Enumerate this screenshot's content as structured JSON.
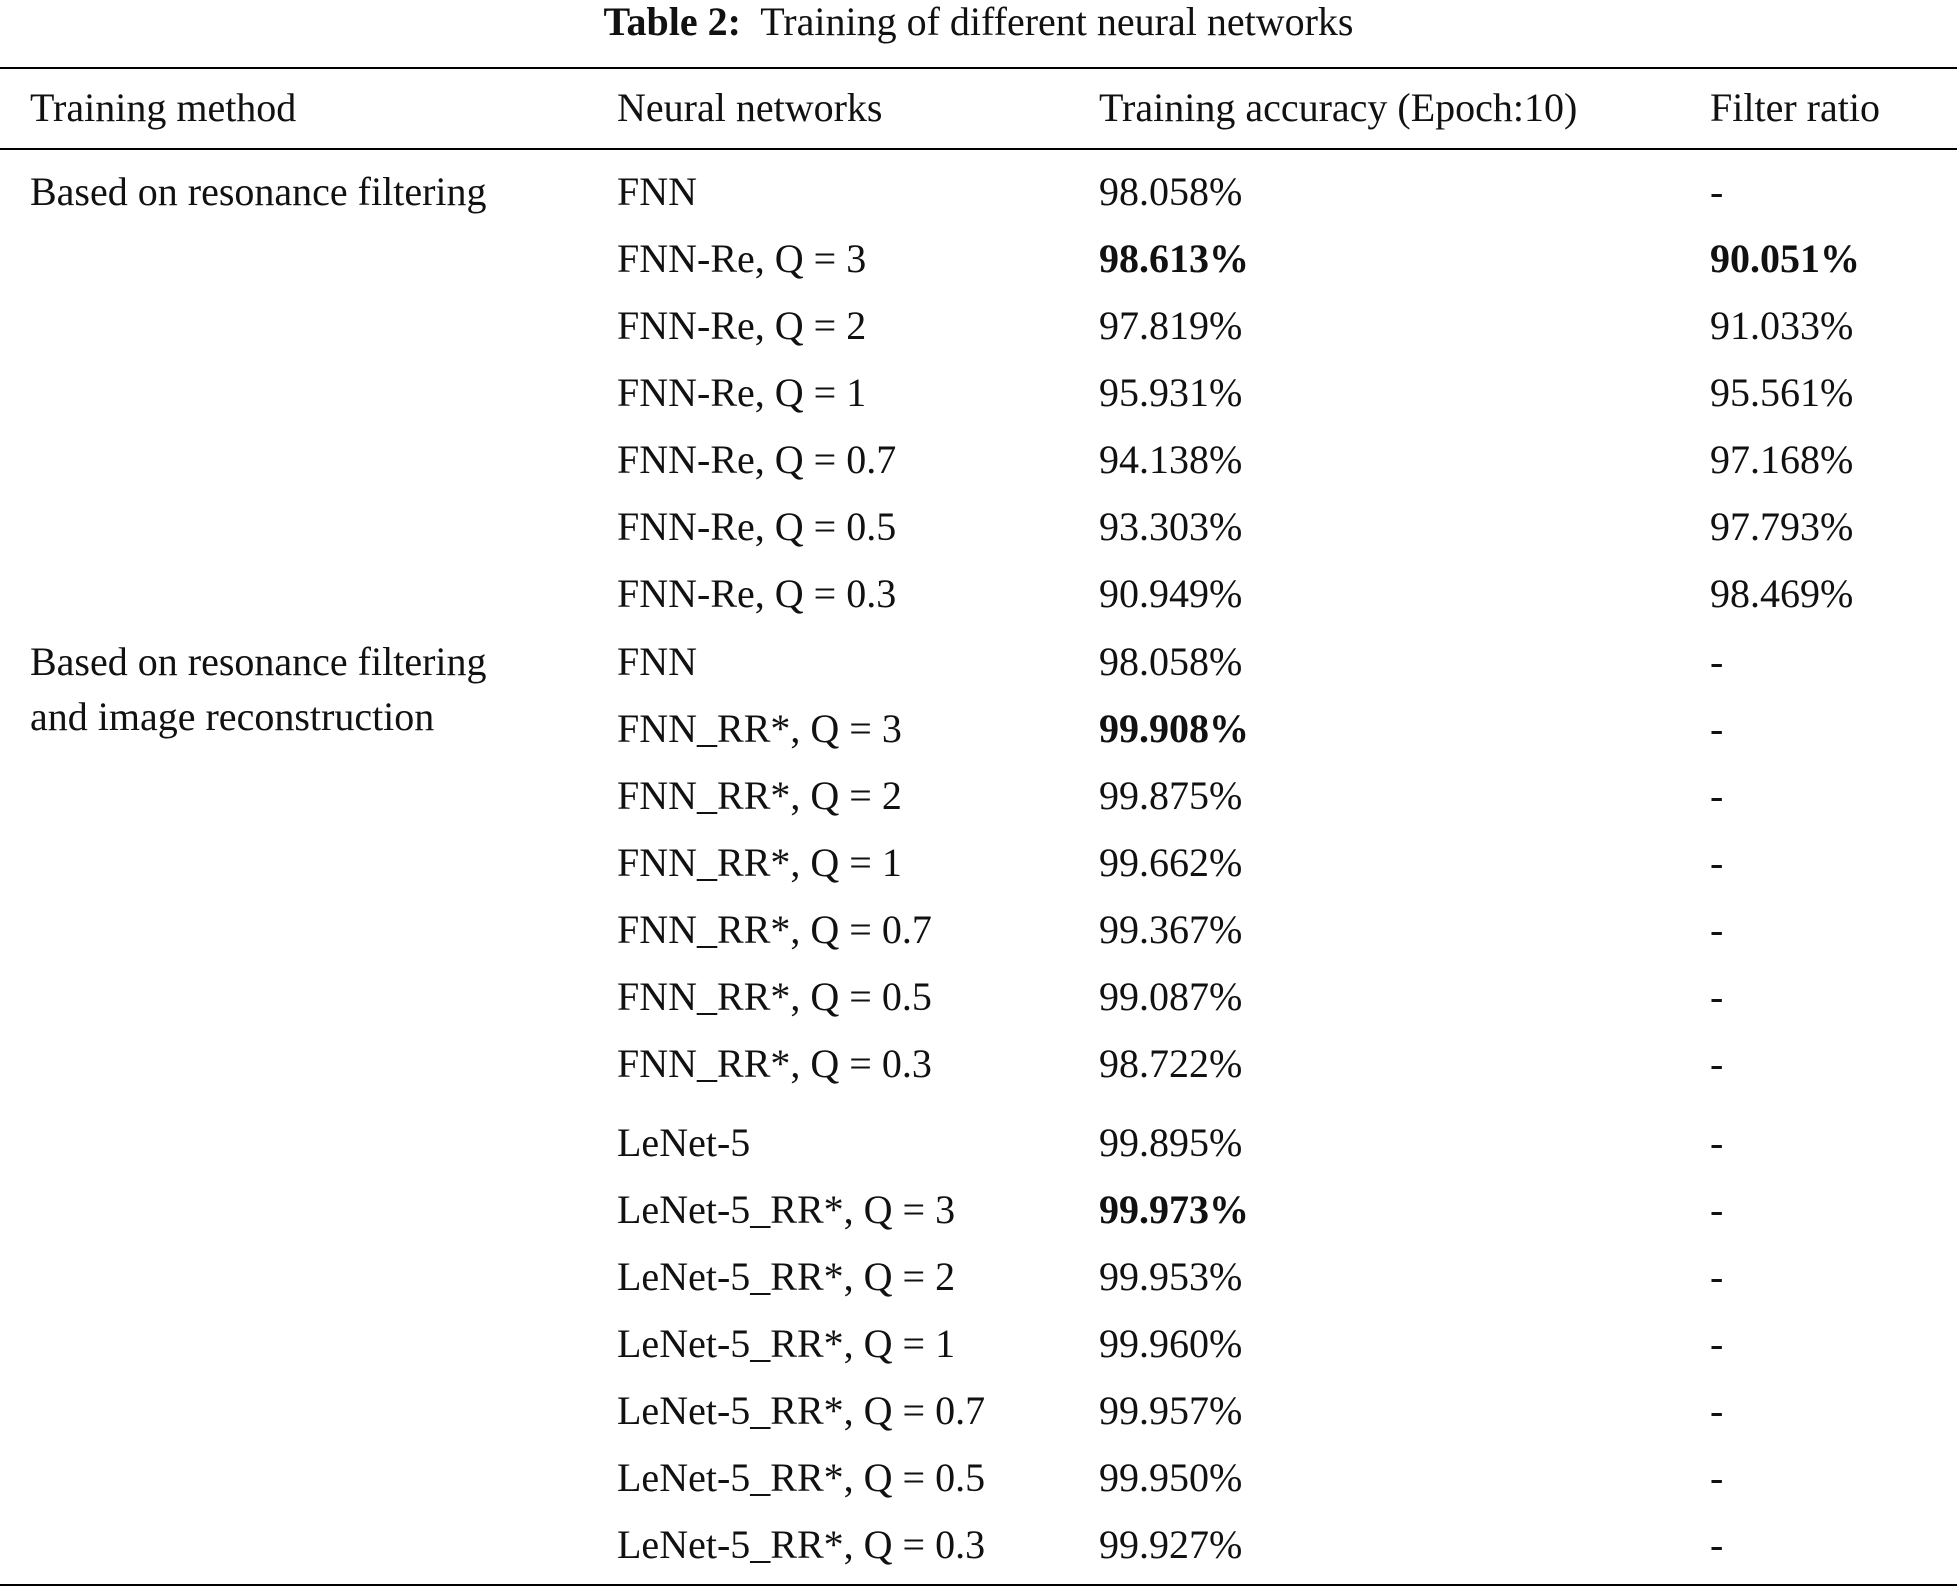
{
  "caption": {
    "label": "Table 2:",
    "text": "Training of different neural networks"
  },
  "table": {
    "headers": [
      "Training method",
      "Neural networks",
      "Training accuracy (Epoch:10)",
      "Filter ratio"
    ],
    "groups": [
      {
        "method_lines": [
          "Based on resonance filtering"
        ],
        "rows": [
          {
            "network": "FNN",
            "accuracy": "98.058%",
            "filter_ratio": "-",
            "acc_bold": false,
            "fr_bold": false
          },
          {
            "network": "FNN-Re, Q = 3",
            "accuracy": "98.613%",
            "filter_ratio": "90.051%",
            "acc_bold": true,
            "fr_bold": true
          },
          {
            "network": "FNN-Re, Q = 2",
            "accuracy": "97.819%",
            "filter_ratio": "91.033%",
            "acc_bold": false,
            "fr_bold": false
          },
          {
            "network": "FNN-Re, Q = 1",
            "accuracy": "95.931%",
            "filter_ratio": "95.561%",
            "acc_bold": false,
            "fr_bold": false
          },
          {
            "network": "FNN-Re, Q = 0.7",
            "accuracy": "94.138%",
            "filter_ratio": "97.168%",
            "acc_bold": false,
            "fr_bold": false
          },
          {
            "network": "FNN-Re, Q = 0.5",
            "accuracy": "93.303%",
            "filter_ratio": "97.793%",
            "acc_bold": false,
            "fr_bold": false
          },
          {
            "network": "FNN-Re, Q = 0.3",
            "accuracy": "90.949%",
            "filter_ratio": "98.469%",
            "acc_bold": false,
            "fr_bold": false
          }
        ]
      },
      {
        "method_lines": [
          "Based on resonance filtering",
          "and image reconstruction"
        ],
        "rows": [
          {
            "network": "FNN",
            "accuracy": "98.058%",
            "filter_ratio": "-",
            "acc_bold": false,
            "fr_bold": false
          },
          {
            "network": "FNN_RR*, Q = 3",
            "accuracy": "99.908%",
            "filter_ratio": "-",
            "acc_bold": true,
            "fr_bold": false
          },
          {
            "network": "FNN_RR*, Q = 2",
            "accuracy": "99.875%",
            "filter_ratio": "-",
            "acc_bold": false,
            "fr_bold": false
          },
          {
            "network": "FNN_RR*, Q = 1",
            "accuracy": "99.662%",
            "filter_ratio": "-",
            "acc_bold": false,
            "fr_bold": false
          },
          {
            "network": "FNN_RR*, Q = 0.7",
            "accuracy": "99.367%",
            "filter_ratio": "-",
            "acc_bold": false,
            "fr_bold": false
          },
          {
            "network": "FNN_RR*, Q = 0.5",
            "accuracy": "99.087%",
            "filter_ratio": "-",
            "acc_bold": false,
            "fr_bold": false
          },
          {
            "network": "FNN_RR*, Q = 0.3",
            "accuracy": "98.722%",
            "filter_ratio": "-",
            "acc_bold": false,
            "fr_bold": false
          },
          {
            "network": "LeNet-5",
            "accuracy": "99.895%",
            "filter_ratio": "-",
            "acc_bold": false,
            "fr_bold": false
          },
          {
            "network": "LeNet-5_RR*, Q = 3",
            "accuracy": "99.973%",
            "filter_ratio": "-",
            "acc_bold": true,
            "fr_bold": false
          },
          {
            "network": "LeNet-5_RR*, Q = 2",
            "accuracy": "99.953%",
            "filter_ratio": "-",
            "acc_bold": false,
            "fr_bold": false
          },
          {
            "network": "LeNet-5_RR*, Q = 1",
            "accuracy": "99.960%",
            "filter_ratio": "-",
            "acc_bold": false,
            "fr_bold": false
          },
          {
            "network": "LeNet-5_RR*, Q = 0.7",
            "accuracy": "99.957%",
            "filter_ratio": "-",
            "acc_bold": false,
            "fr_bold": false
          },
          {
            "network": "LeNet-5_RR*, Q = 0.5",
            "accuracy": "99.950%",
            "filter_ratio": "-",
            "acc_bold": false,
            "fr_bold": false
          },
          {
            "network": "LeNet-5_RR*, Q = 0.3",
            "accuracy": "99.927%",
            "filter_ratio": "-",
            "acc_bold": false,
            "fr_bold": false
          }
        ]
      }
    ]
  }
}
